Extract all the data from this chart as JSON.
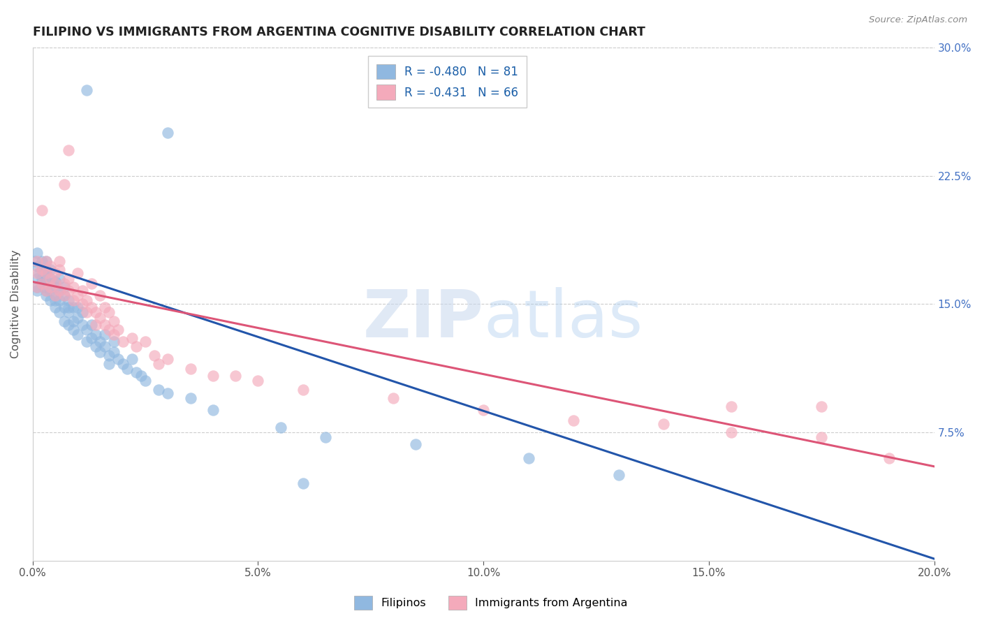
{
  "title": "FILIPINO VS IMMIGRANTS FROM ARGENTINA COGNITIVE DISABILITY CORRELATION CHART",
  "source": "Source: ZipAtlas.com",
  "ylabel": "Cognitive Disability",
  "watermark_zip": "ZIP",
  "watermark_atlas": "atlas",
  "blue_label": "Filipinos",
  "pink_label": "Immigrants from Argentina",
  "blue_r": -0.48,
  "blue_n": 81,
  "pink_r": -0.431,
  "pink_n": 66,
  "blue_color": "#90B8E0",
  "pink_color": "#F4AABB",
  "blue_line_color": "#2255AA",
  "pink_line_color": "#DD5577",
  "xlim": [
    0.0,
    0.2
  ],
  "ylim": [
    0.0,
    0.3
  ],
  "xticks": [
    0.0,
    0.05,
    0.1,
    0.15,
    0.2
  ],
  "xtick_labels": [
    "0.0%",
    "5.0%",
    "10.0%",
    "15.0%",
    "20.0%"
  ],
  "yticks_right": [
    0.075,
    0.15,
    0.225,
    0.3
  ],
  "ytick_labels_right": [
    "7.5%",
    "15.0%",
    "22.5%",
    "30.0%"
  ],
  "blue_line_x0": 0.0,
  "blue_line_y0": 0.174,
  "blue_line_x1": 0.2,
  "blue_line_y1": 0.001,
  "pink_line_x0": 0.0,
  "pink_line_y0": 0.163,
  "pink_line_x1": 0.2,
  "pink_line_y1": 0.055,
  "figsize": [
    14.06,
    8.92
  ],
  "dpi": 100,
  "blue_scatter": [
    [
      0.0005,
      0.175
    ],
    [
      0.001,
      0.18
    ],
    [
      0.001,
      0.165
    ],
    [
      0.001,
      0.16
    ],
    [
      0.001,
      0.172
    ],
    [
      0.001,
      0.158
    ],
    [
      0.0015,
      0.168
    ],
    [
      0.002,
      0.175
    ],
    [
      0.002,
      0.162
    ],
    [
      0.002,
      0.17
    ],
    [
      0.002,
      0.165
    ],
    [
      0.0025,
      0.16
    ],
    [
      0.003,
      0.17
    ],
    [
      0.003,
      0.163
    ],
    [
      0.003,
      0.155
    ],
    [
      0.003,
      0.168
    ],
    [
      0.003,
      0.175
    ],
    [
      0.003,
      0.158
    ],
    [
      0.004,
      0.165
    ],
    [
      0.004,
      0.158
    ],
    [
      0.004,
      0.152
    ],
    [
      0.004,
      0.17
    ],
    [
      0.004,
      0.162
    ],
    [
      0.005,
      0.16
    ],
    [
      0.005,
      0.155
    ],
    [
      0.005,
      0.163
    ],
    [
      0.005,
      0.152
    ],
    [
      0.005,
      0.148
    ],
    [
      0.006,
      0.158
    ],
    [
      0.006,
      0.152
    ],
    [
      0.006,
      0.165
    ],
    [
      0.006,
      0.145
    ],
    [
      0.007,
      0.148
    ],
    [
      0.007,
      0.155
    ],
    [
      0.007,
      0.14
    ],
    [
      0.007,
      0.16
    ],
    [
      0.008,
      0.145
    ],
    [
      0.008,
      0.152
    ],
    [
      0.008,
      0.138
    ],
    [
      0.008,
      0.148
    ],
    [
      0.009,
      0.14
    ],
    [
      0.009,
      0.148
    ],
    [
      0.009,
      0.135
    ],
    [
      0.01,
      0.142
    ],
    [
      0.01,
      0.148
    ],
    [
      0.01,
      0.132
    ],
    [
      0.011,
      0.138
    ],
    [
      0.011,
      0.145
    ],
    [
      0.012,
      0.135
    ],
    [
      0.012,
      0.128
    ],
    [
      0.013,
      0.13
    ],
    [
      0.013,
      0.138
    ],
    [
      0.014,
      0.132
    ],
    [
      0.014,
      0.125
    ],
    [
      0.015,
      0.128
    ],
    [
      0.015,
      0.122
    ],
    [
      0.016,
      0.125
    ],
    [
      0.016,
      0.132
    ],
    [
      0.017,
      0.12
    ],
    [
      0.017,
      0.115
    ],
    [
      0.018,
      0.122
    ],
    [
      0.018,
      0.128
    ],
    [
      0.019,
      0.118
    ],
    [
      0.02,
      0.115
    ],
    [
      0.021,
      0.112
    ],
    [
      0.022,
      0.118
    ],
    [
      0.023,
      0.11
    ],
    [
      0.024,
      0.108
    ],
    [
      0.025,
      0.105
    ],
    [
      0.028,
      0.1
    ],
    [
      0.03,
      0.098
    ],
    [
      0.035,
      0.095
    ],
    [
      0.04,
      0.088
    ],
    [
      0.055,
      0.078
    ],
    [
      0.065,
      0.072
    ],
    [
      0.085,
      0.068
    ],
    [
      0.11,
      0.06
    ],
    [
      0.13,
      0.05
    ],
    [
      0.012,
      0.275
    ],
    [
      0.03,
      0.25
    ],
    [
      0.06,
      0.045
    ]
  ],
  "pink_scatter": [
    [
      0.001,
      0.168
    ],
    [
      0.001,
      0.16
    ],
    [
      0.001,
      0.175
    ],
    [
      0.002,
      0.17
    ],
    [
      0.002,
      0.205
    ],
    [
      0.002,
      0.162
    ],
    [
      0.003,
      0.168
    ],
    [
      0.003,
      0.175
    ],
    [
      0.003,
      0.158
    ],
    [
      0.004,
      0.165
    ],
    [
      0.004,
      0.172
    ],
    [
      0.004,
      0.16
    ],
    [
      0.005,
      0.168
    ],
    [
      0.005,
      0.155
    ],
    [
      0.005,
      0.162
    ],
    [
      0.006,
      0.17
    ],
    [
      0.006,
      0.158
    ],
    [
      0.006,
      0.175
    ],
    [
      0.007,
      0.162
    ],
    [
      0.007,
      0.155
    ],
    [
      0.007,
      0.22
    ],
    [
      0.008,
      0.165
    ],
    [
      0.008,
      0.158
    ],
    [
      0.008,
      0.24
    ],
    [
      0.009,
      0.152
    ],
    [
      0.009,
      0.16
    ],
    [
      0.01,
      0.155
    ],
    [
      0.01,
      0.168
    ],
    [
      0.011,
      0.15
    ],
    [
      0.011,
      0.158
    ],
    [
      0.012,
      0.152
    ],
    [
      0.012,
      0.145
    ],
    [
      0.013,
      0.148
    ],
    [
      0.013,
      0.162
    ],
    [
      0.014,
      0.145
    ],
    [
      0.014,
      0.138
    ],
    [
      0.015,
      0.142
    ],
    [
      0.015,
      0.155
    ],
    [
      0.016,
      0.138
    ],
    [
      0.016,
      0.148
    ],
    [
      0.017,
      0.135
    ],
    [
      0.017,
      0.145
    ],
    [
      0.018,
      0.14
    ],
    [
      0.018,
      0.132
    ],
    [
      0.019,
      0.135
    ],
    [
      0.02,
      0.128
    ],
    [
      0.022,
      0.13
    ],
    [
      0.023,
      0.125
    ],
    [
      0.025,
      0.128
    ],
    [
      0.027,
      0.12
    ],
    [
      0.028,
      0.115
    ],
    [
      0.03,
      0.118
    ],
    [
      0.035,
      0.112
    ],
    [
      0.04,
      0.108
    ],
    [
      0.045,
      0.108
    ],
    [
      0.05,
      0.105
    ],
    [
      0.06,
      0.1
    ],
    [
      0.08,
      0.095
    ],
    [
      0.1,
      0.088
    ],
    [
      0.12,
      0.082
    ],
    [
      0.14,
      0.08
    ],
    [
      0.155,
      0.075
    ],
    [
      0.175,
      0.072
    ],
    [
      0.19,
      0.06
    ],
    [
      0.155,
      0.09
    ],
    [
      0.175,
      0.09
    ]
  ]
}
